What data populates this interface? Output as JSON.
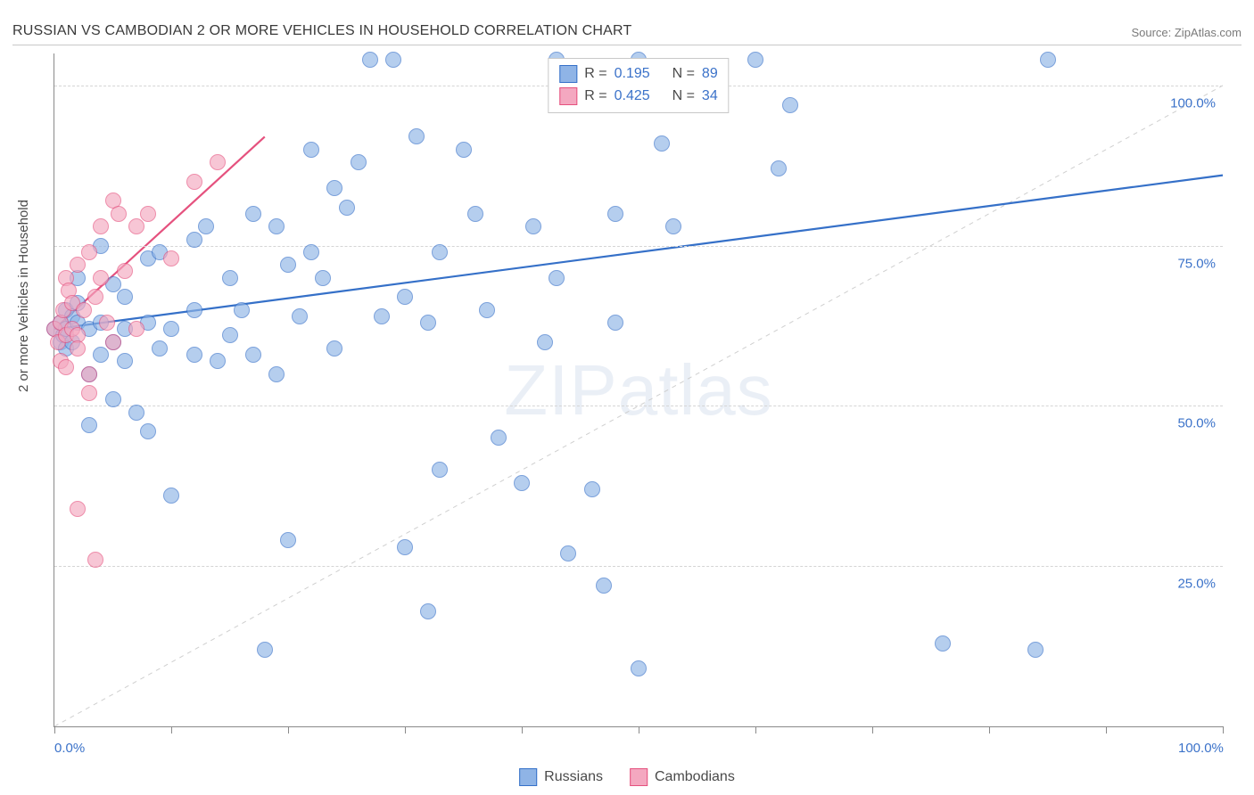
{
  "title": "RUSSIAN VS CAMBODIAN 2 OR MORE VEHICLES IN HOUSEHOLD CORRELATION CHART",
  "source_label": "Source: ",
  "source_name": "ZipAtlas.com",
  "watermark_zip": "ZIP",
  "watermark_atlas": "atlas",
  "y_axis_title": "2 or more Vehicles in Household",
  "chart": {
    "type": "scatter",
    "xlim": [
      0,
      100
    ],
    "ylim": [
      0,
      105
    ],
    "x_tick_positions": [
      0,
      10,
      20,
      30,
      40,
      50,
      60,
      70,
      80,
      90,
      100
    ],
    "x_tick_labels": {
      "0": "0.0%",
      "100": "100.0%"
    },
    "y_grid_positions": [
      25,
      50,
      75,
      100
    ],
    "y_tick_labels": {
      "25": "25.0%",
      "50": "50.0%",
      "75": "75.0%",
      "100": "100.0%"
    },
    "background_color": "#ffffff",
    "grid_color": "#d5d5d5",
    "axis_color": "#8a8a8a",
    "marker_radius": 8,
    "marker_stroke_width": 1.2,
    "marker_fill_opacity": 0.3,
    "trend_line_width": 2.2,
    "diag_dash": "5,5",
    "diag_color": "#cfcfcf"
  },
  "series": [
    {
      "key": "russians",
      "label": "Russians",
      "color_stroke": "#3570c8",
      "color_fill": "#8fb4e6",
      "r_label": "R =",
      "r_value": "0.195",
      "n_label": "N =",
      "n_value": "89",
      "trend": {
        "x1": 0,
        "y1": 62,
        "x2": 100,
        "y2": 86
      },
      "points": [
        [
          0,
          62
        ],
        [
          0.5,
          60
        ],
        [
          0.5,
          63
        ],
        [
          0.8,
          61
        ],
        [
          1,
          62
        ],
        [
          1,
          59
        ],
        [
          1,
          65
        ],
        [
          1.5,
          64
        ],
        [
          1.5,
          60
        ],
        [
          2,
          63
        ],
        [
          2,
          70
        ],
        [
          2,
          66
        ],
        [
          3,
          55
        ],
        [
          3,
          62
        ],
        [
          3,
          47
        ],
        [
          4,
          63
        ],
        [
          4,
          75
        ],
        [
          4,
          58
        ],
        [
          5,
          60
        ],
        [
          5,
          51
        ],
        [
          5,
          69
        ],
        [
          6,
          57
        ],
        [
          6,
          67
        ],
        [
          6,
          62
        ],
        [
          7,
          49
        ],
        [
          8,
          63
        ],
        [
          8,
          73
        ],
        [
          8,
          46
        ],
        [
          9,
          74
        ],
        [
          9,
          59
        ],
        [
          10,
          62
        ],
        [
          10,
          36
        ],
        [
          12,
          58
        ],
        [
          12,
          65
        ],
        [
          12,
          76
        ],
        [
          13,
          78
        ],
        [
          14,
          57
        ],
        [
          15,
          70
        ],
        [
          15,
          61
        ],
        [
          16,
          65
        ],
        [
          17,
          80
        ],
        [
          17,
          58
        ],
        [
          18,
          12
        ],
        [
          19,
          78
        ],
        [
          19,
          55
        ],
        [
          20,
          72
        ],
        [
          20,
          29
        ],
        [
          21,
          64
        ],
        [
          22,
          74
        ],
        [
          22,
          90
        ],
        [
          23,
          70
        ],
        [
          24,
          59
        ],
        [
          24,
          84
        ],
        [
          25,
          81
        ],
        [
          26,
          88
        ],
        [
          27,
          104
        ],
        [
          28,
          64
        ],
        [
          29,
          104
        ],
        [
          30,
          67
        ],
        [
          30,
          28
        ],
        [
          31,
          92
        ],
        [
          32,
          63
        ],
        [
          32,
          18
        ],
        [
          33,
          74
        ],
        [
          33,
          40
        ],
        [
          35,
          90
        ],
        [
          36,
          80
        ],
        [
          37,
          65
        ],
        [
          38,
          45
        ],
        [
          40,
          38
        ],
        [
          41,
          78
        ],
        [
          42,
          60
        ],
        [
          43,
          104
        ],
        [
          43,
          70
        ],
        [
          44,
          27
        ],
        [
          46,
          37
        ],
        [
          47,
          22
        ],
        [
          48,
          63
        ],
        [
          48,
          80
        ],
        [
          50,
          104
        ],
        [
          50,
          9
        ],
        [
          52,
          91
        ],
        [
          53,
          78
        ],
        [
          60,
          104
        ],
        [
          62,
          87
        ],
        [
          63,
          97
        ],
        [
          76,
          13
        ],
        [
          84,
          12
        ],
        [
          85,
          104
        ]
      ]
    },
    {
      "key": "cambodians",
      "label": "Cambodians",
      "color_stroke": "#e5517e",
      "color_fill": "#f4a8c0",
      "r_label": "R =",
      "r_value": "0.425",
      "n_label": "N =",
      "n_value": "34",
      "trend": {
        "x1": 0,
        "y1": 62,
        "x2": 18,
        "y2": 92
      },
      "points": [
        [
          0,
          62
        ],
        [
          0.3,
          60
        ],
        [
          0.5,
          57
        ],
        [
          0.5,
          63
        ],
        [
          0.8,
          65
        ],
        [
          1,
          70
        ],
        [
          1,
          56
        ],
        [
          1,
          61
        ],
        [
          1.2,
          68
        ],
        [
          1.5,
          62
        ],
        [
          1.5,
          66
        ],
        [
          2,
          61
        ],
        [
          2,
          72
        ],
        [
          2,
          59
        ],
        [
          2,
          34
        ],
        [
          2.5,
          65
        ],
        [
          3,
          74
        ],
        [
          3,
          55
        ],
        [
          3,
          52
        ],
        [
          3.5,
          67
        ],
        [
          3.5,
          26
        ],
        [
          4,
          70
        ],
        [
          4,
          78
        ],
        [
          4.5,
          63
        ],
        [
          5,
          82
        ],
        [
          5,
          60
        ],
        [
          5.5,
          80
        ],
        [
          6,
          71
        ],
        [
          7,
          78
        ],
        [
          7,
          62
        ],
        [
          8,
          80
        ],
        [
          10,
          73
        ],
        [
          12,
          85
        ],
        [
          14,
          88
        ]
      ]
    }
  ]
}
